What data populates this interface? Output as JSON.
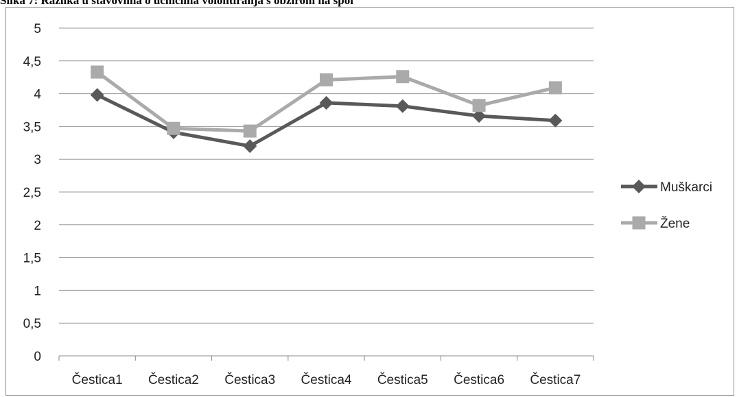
{
  "caption": "Slika 7: Razlika u stavovima o učincima volontiranja s obzirom na spol",
  "chart_data": {
    "type": "line",
    "title": "",
    "xlabel": "",
    "ylabel": "",
    "categories": [
      "Čestica1",
      "Čestica2",
      "Čestica3",
      "Čestica4",
      "Čestica5",
      "Čestica6",
      "Čestica7"
    ],
    "ylim": [
      0,
      5
    ],
    "yticks": [
      0,
      0.5,
      1,
      1.5,
      2,
      2.5,
      3,
      3.5,
      4,
      4.5,
      5
    ],
    "ytick_labels": [
      "0",
      "0,5",
      "1",
      "1,5",
      "2",
      "2,5",
      "3",
      "3,5",
      "4",
      "4,5",
      "5"
    ],
    "grid": true,
    "legend_position": "right",
    "series": [
      {
        "name": "Muškarci",
        "color": "#595959",
        "marker": "diamond",
        "values": [
          3.98,
          3.41,
          3.2,
          3.86,
          3.81,
          3.66,
          3.59
        ]
      },
      {
        "name": "Žene",
        "color": "#aaaaaa",
        "marker": "square",
        "values": [
          4.33,
          3.47,
          3.43,
          4.21,
          4.26,
          3.82,
          4.09
        ]
      }
    ]
  }
}
